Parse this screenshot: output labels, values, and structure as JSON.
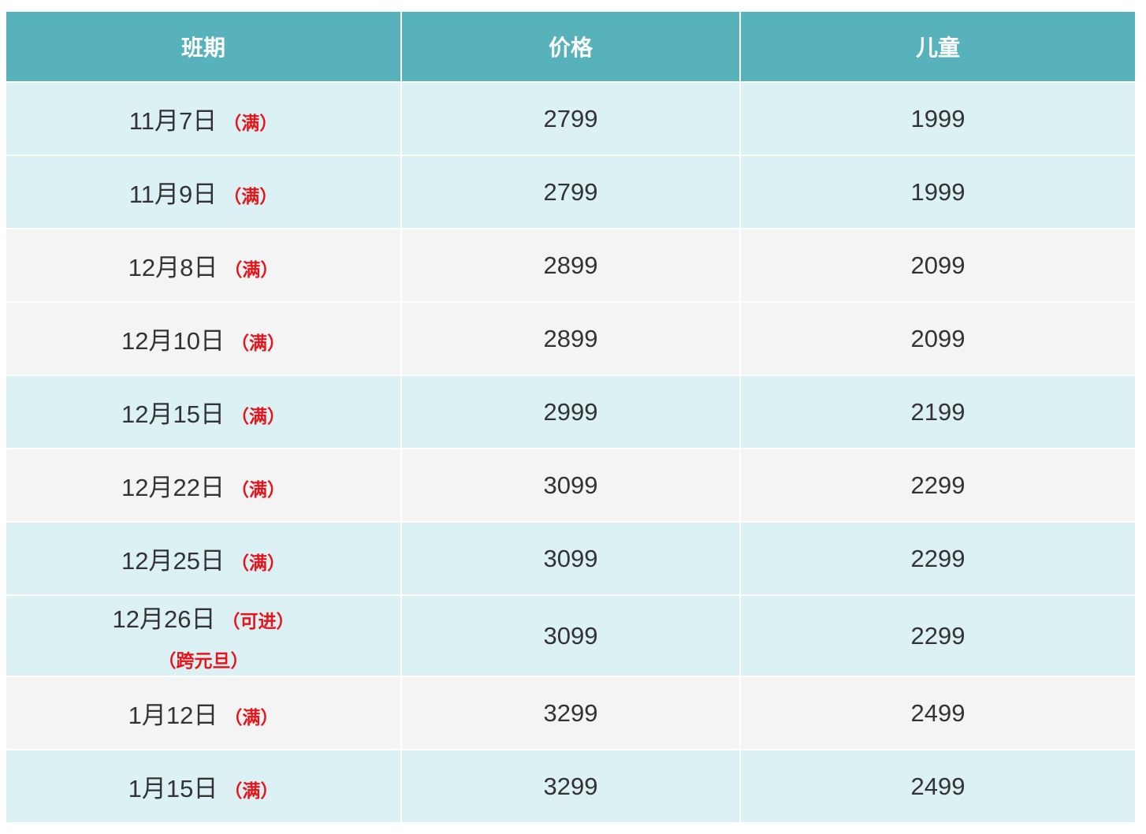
{
  "headers": [
    "班期",
    "价格",
    "儿童"
  ],
  "colors": {
    "header_bg": "#58b2bc",
    "row_cyan": "#dcf1f4",
    "row_gray": "#f4f4f4",
    "note": "#e8141b"
  },
  "rows": [
    {
      "date": "11月7日",
      "note": "（满）",
      "price": "2799",
      "child": "1999",
      "shade": "cyan"
    },
    {
      "date": "11月9日",
      "note": "（满）",
      "price": "2799",
      "child": "1999",
      "shade": "cyan"
    },
    {
      "date": "12月8日",
      "note": "（满）",
      "price": "2899",
      "child": "2099",
      "shade": "gray"
    },
    {
      "date": "12月10日",
      "note": "（满）",
      "price": "2899",
      "child": "2099",
      "shade": "gray"
    },
    {
      "date": "12月15日",
      "note": "（满）",
      "price": "2999",
      "child": "2199",
      "shade": "cyan"
    },
    {
      "date": "12月22日",
      "note": "（满）",
      "price": "3099",
      "child": "2299",
      "shade": "gray"
    },
    {
      "date": "12月25日",
      "note": "（满）",
      "price": "3099",
      "child": "2299",
      "shade": "cyan"
    },
    {
      "date": "12月26日",
      "note": "（可进）",
      "note2": "（跨元旦）",
      "price": "3099",
      "child": "2299",
      "shade": "cyan"
    },
    {
      "date": "1月12日",
      "note": "（满）",
      "price": "3299",
      "child": "2499",
      "shade": "gray"
    },
    {
      "date": "1月15日",
      "note": "（满）",
      "price": "3299",
      "child": "2499",
      "shade": "cyan"
    }
  ]
}
